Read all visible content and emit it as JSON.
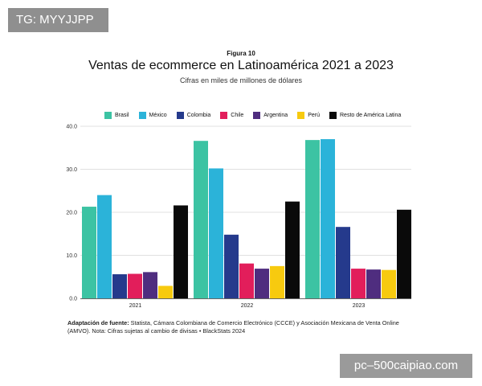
{
  "watermarks": {
    "top_left": "TG: MYYJJPP",
    "bottom_right": "pc–500caipiao.com"
  },
  "chart_data": {
    "type": "bar",
    "figure_label": "Figura 10",
    "title": "Ventas de ecommerce en Latinoamérica 2021 a 2023",
    "subtitle": "Cifras en miles de millones de dólares",
    "categories": [
      "2021",
      "2022",
      "2023"
    ],
    "ylim": [
      0,
      40
    ],
    "yticks": [
      "0.0",
      "10.0",
      "20.0",
      "30.0",
      "40.0"
    ],
    "ytick_values": [
      0,
      10,
      20,
      30,
      40
    ],
    "grid": true,
    "legend_position": "top",
    "series": [
      {
        "name": "Brasil",
        "color": "#3cc3a3",
        "values": [
          21.3,
          36.6,
          36.8
        ]
      },
      {
        "name": "México",
        "color": "#2bb3d9",
        "values": [
          24.0,
          30.2,
          37.0
        ]
      },
      {
        "name": "Colombia",
        "color": "#253a8c",
        "values": [
          5.6,
          14.8,
          16.6
        ]
      },
      {
        "name": "Chile",
        "color": "#e21e5b",
        "values": [
          5.7,
          8.1,
          6.9
        ]
      },
      {
        "name": "Argentina",
        "color": "#4f2d7f",
        "values": [
          6.1,
          6.9,
          6.7
        ]
      },
      {
        "name": "Perú",
        "color": "#f7ca0f",
        "values": [
          2.9,
          7.5,
          6.6
        ]
      },
      {
        "name": "Resto de América Latina",
        "color": "#0a0a0a",
        "values": [
          21.6,
          22.5,
          20.6
        ]
      }
    ]
  },
  "footnote": {
    "bold": "Adaptación de fuente:",
    "text": " Statista, Cámara Colombiana de Comercio Electrónico (CCCE) y Asociación Mexicana de Venta Online (AMVO). Nota: Cifras sujetas al cambio de divisas • BlackStats 2024"
  }
}
